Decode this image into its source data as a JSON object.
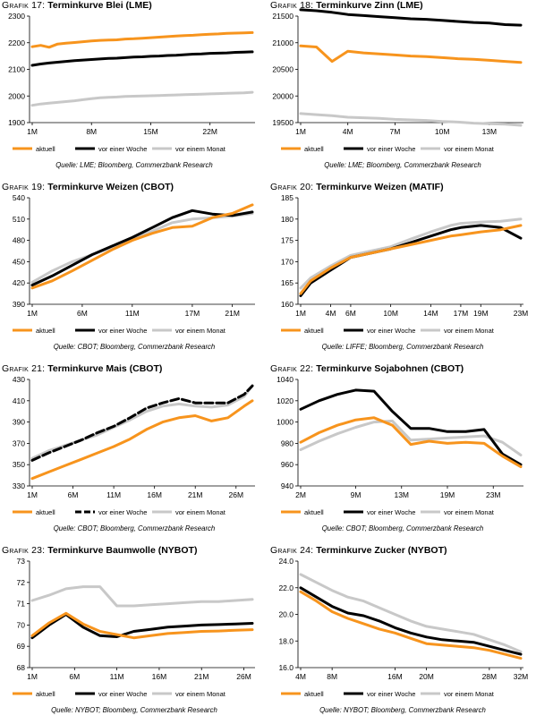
{
  "colors": {
    "aktuell": "#f7941d",
    "woche": "#000000",
    "monat": "#c8c8c8"
  },
  "chart_data": [
    {
      "type": "line",
      "grafik_label": "Grafik 17:",
      "title": "Terminkurve Blei (LME)",
      "source": "Quelle: LME; Bloomberg, Commerzbank Research",
      "ylim": [
        1900,
        2300
      ],
      "yticks": [
        "1900",
        "2000",
        "2100",
        "2200",
        "2300"
      ],
      "x": [
        1,
        2,
        3,
        4,
        5,
        6,
        7,
        8,
        9,
        10,
        11,
        12,
        13,
        14,
        15,
        16,
        17,
        18,
        19,
        20,
        21,
        22,
        23,
        24,
        25,
        26,
        27
      ],
      "xticks": [
        {
          "x": 1,
          "label": "1M"
        },
        {
          "x": 8,
          "label": "8M"
        },
        {
          "x": 15,
          "label": "15M"
        },
        {
          "x": 22,
          "label": "22M"
        }
      ],
      "series": [
        {
          "name": "aktuell",
          "style": "solid",
          "color_key": "aktuell",
          "values": [
            2185,
            2190,
            2183,
            2195,
            2198,
            2201,
            2204,
            2207,
            2209,
            2210,
            2211,
            2214,
            2215,
            2217,
            2219,
            2221,
            2223,
            2225,
            2227,
            2228,
            2230,
            2232,
            2233,
            2235,
            2236,
            2237,
            2238
          ]
        },
        {
          "name": "vor einer Woche",
          "style": "solid",
          "color_key": "woche",
          "values": [
            2115,
            2120,
            2124,
            2127,
            2130,
            2133,
            2135,
            2137,
            2139,
            2141,
            2142,
            2144,
            2146,
            2147,
            2149,
            2150,
            2152,
            2153,
            2155,
            2157,
            2158,
            2160,
            2161,
            2162,
            2164,
            2165,
            2166
          ]
        },
        {
          "name": "vor einem Monat",
          "style": "solid",
          "color_key": "monat",
          "values": [
            1965,
            1970,
            1973,
            1976,
            1979,
            1982,
            1986,
            1990,
            1993,
            1995,
            1996,
            1998,
            1999,
            2000,
            2001,
            2002,
            2003,
            2004,
            2005,
            2006,
            2007,
            2008,
            2009,
            2010,
            2011,
            2012,
            2014
          ]
        }
      ]
    },
    {
      "type": "line",
      "grafik_label": "Grafik 18:",
      "title": "Terminkurve Zinn (LME)",
      "source": "Quelle: LME; Bloomberg, Commerzbank Research",
      "ylim": [
        19500,
        21500
      ],
      "yticks": [
        "19500",
        "20000",
        "20500",
        "21000",
        "21500"
      ],
      "x": [
        1,
        2,
        3,
        4,
        5,
        6,
        7,
        8,
        9,
        10,
        11,
        12,
        13,
        14,
        15
      ],
      "xticks": [
        {
          "x": 1,
          "label": "1M"
        },
        {
          "x": 4,
          "label": "4M"
        },
        {
          "x": 7,
          "label": "7M"
        },
        {
          "x": 10,
          "label": "10M"
        },
        {
          "x": 13,
          "label": "13M"
        }
      ],
      "series": [
        {
          "name": "aktuell",
          "style": "solid",
          "color_key": "aktuell",
          "values": [
            20940,
            20920,
            20650,
            20840,
            20810,
            20790,
            20770,
            20750,
            20740,
            20720,
            20700,
            20690,
            20670,
            20650,
            20630
          ]
        },
        {
          "name": "vor einer Woche",
          "style": "solid",
          "color_key": "woche",
          "values": [
            21620,
            21600,
            21570,
            21530,
            21510,
            21490,
            21470,
            21450,
            21440,
            21420,
            21400,
            21380,
            21370,
            21340,
            21330
          ]
        },
        {
          "name": "vor einem Monat",
          "style": "solid",
          "color_key": "monat",
          "values": [
            19670,
            19650,
            19630,
            19600,
            19590,
            19580,
            19560,
            19550,
            19540,
            19520,
            19510,
            19490,
            19480,
            19470,
            19450
          ]
        }
      ]
    },
    {
      "type": "line",
      "grafik_label": "Grafik 19:",
      "title": "Terminkurve Weizen (CBOT)",
      "source": "Quelle: CBOT; Bloomberg, Commerzbank Research",
      "ylim": [
        390,
        540
      ],
      "yticks": [
        "390",
        "420",
        "450",
        "480",
        "510",
        "540"
      ],
      "x": [
        1,
        3,
        5,
        7,
        9,
        11,
        13,
        15,
        17,
        19,
        21,
        23
      ],
      "xticks": [
        {
          "x": 1,
          "label": "1M"
        },
        {
          "x": 6,
          "label": "6M"
        },
        {
          "x": 11,
          "label": "11M"
        },
        {
          "x": 17,
          "label": "17M"
        },
        {
          "x": 21,
          "label": "21M"
        }
      ],
      "series": [
        {
          "name": "aktuell",
          "style": "solid",
          "color_key": "aktuell",
          "values": [
            413,
            423,
            437,
            452,
            467,
            480,
            490,
            498,
            500,
            512,
            518,
            530
          ]
        },
        {
          "name": "vor einer Woche",
          "style": "solid",
          "color_key": "woche",
          "values": [
            417,
            430,
            445,
            460,
            472,
            484,
            498,
            512,
            522,
            517,
            515,
            520
          ]
        },
        {
          "name": "vor einem Monat",
          "style": "solid",
          "color_key": "monat",
          "values": [
            421,
            437,
            450,
            460,
            470,
            483,
            493,
            505,
            510,
            512,
            514,
            518
          ]
        }
      ]
    },
    {
      "type": "line",
      "grafik_label": "Grafik 20:",
      "title": "Terminkurve Weizen (MATIF)",
      "source": "Quelle: LIFFE; Bloomberg, Commerzbank Research",
      "ylim": [
        160,
        185
      ],
      "yticks": [
        "160",
        "165",
        "170",
        "175",
        "180",
        "185"
      ],
      "x": [
        1,
        2,
        4,
        6,
        8,
        10,
        12,
        14,
        16,
        17,
        19,
        21,
        23
      ],
      "xticks": [
        {
          "x": 1,
          "label": "1M"
        },
        {
          "x": 4,
          "label": "4M"
        },
        {
          "x": 6,
          "label": "6M"
        },
        {
          "x": 10,
          "label": "10M"
        },
        {
          "x": 14,
          "label": "14M"
        },
        {
          "x": 17,
          "label": "17M"
        },
        {
          "x": 19,
          "label": "19M"
        },
        {
          "x": 23,
          "label": "23M"
        }
      ],
      "series": [
        {
          "name": "aktuell",
          "style": "solid",
          "color_key": "aktuell",
          "values": [
            162.5,
            165.5,
            168.5,
            171,
            172,
            173,
            174,
            175,
            176,
            176.3,
            177,
            177.5,
            178.5
          ]
        },
        {
          "name": "vor einer Woche",
          "style": "solid",
          "color_key": "woche",
          "values": [
            162,
            165,
            168,
            171,
            172,
            173,
            174.5,
            176,
            177.5,
            178,
            178.5,
            178,
            175.5
          ]
        },
        {
          "name": "vor einem Monat",
          "style": "solid",
          "color_key": "monat",
          "values": [
            163.8,
            166.2,
            169,
            171.5,
            172.5,
            173.5,
            175.3,
            177,
            178.5,
            179,
            179.3,
            179.5,
            180
          ]
        }
      ]
    },
    {
      "type": "line",
      "grafik_label": "Grafik 21:",
      "title": "Terminkurve Mais (CBOT)",
      "source": "Quelle: CBOT; Bloomberg, Commerzbank Research",
      "ylim": [
        330,
        430
      ],
      "yticks": [
        "330",
        "350",
        "370",
        "390",
        "410",
        "430"
      ],
      "x": [
        1,
        3,
        5,
        7,
        9,
        11,
        13,
        15,
        17,
        19,
        21,
        23,
        25,
        27,
        28
      ],
      "xticks": [
        {
          "x": 1,
          "label": "1M"
        },
        {
          "x": 6,
          "label": "6M"
        },
        {
          "x": 11,
          "label": "11M"
        },
        {
          "x": 16,
          "label": "16M"
        },
        {
          "x": 21,
          "label": "21M"
        },
        {
          "x": 26,
          "label": "26M"
        }
      ],
      "series": [
        {
          "name": "aktuell",
          "style": "solid",
          "color_key": "aktuell",
          "values": [
            337,
            343,
            349,
            355,
            361,
            367,
            374,
            383,
            390,
            394,
            396,
            391,
            394,
            405,
            410
          ]
        },
        {
          "name": "vor einer Woche",
          "style": "dashed",
          "color_key": "woche",
          "values": [
            354,
            361,
            367,
            373,
            380,
            386,
            394,
            403,
            408,
            412,
            408,
            408,
            408,
            416,
            424
          ]
        },
        {
          "name": "vor einem Monat",
          "style": "solid",
          "color_key": "monat",
          "values": [
            356,
            363,
            368,
            373,
            378,
            385,
            392,
            400,
            405,
            407,
            405,
            404,
            406,
            414,
            424
          ]
        }
      ]
    },
    {
      "type": "line",
      "grafik_label": "Grafik 22:",
      "title": "Terminkurve Sojabohnen (CBOT)",
      "source": "Quelle: CBOT; Bloomberg, Commerzbank Research",
      "ylim": [
        940,
        1040
      ],
      "yticks": [
        "940",
        "960",
        "980",
        "1000",
        "1020",
        "1040"
      ],
      "x": [
        1,
        3,
        5,
        7,
        9,
        11,
        13,
        15,
        17,
        19,
        21,
        23,
        25
      ],
      "xticks": [
        {
          "x": 1,
          "label": "2M"
        },
        {
          "x": 7,
          "label": "9M"
        },
        {
          "x": 12,
          "label": "13M"
        },
        {
          "x": 17,
          "label": "19M"
        },
        {
          "x": 22,
          "label": "23M"
        }
      ],
      "series": [
        {
          "name": "aktuell",
          "style": "solid",
          "color_key": "aktuell",
          "values": [
            981,
            990,
            997,
            1002,
            1004,
            997,
            979,
            982,
            980,
            981,
            980,
            968,
            958
          ]
        },
        {
          "name": "vor einer Woche",
          "style": "solid",
          "color_key": "woche",
          "values": [
            1012,
            1020,
            1026,
            1030,
            1029,
            1010,
            994,
            994,
            991,
            991,
            993,
            970,
            960
          ]
        },
        {
          "name": "vor einem Monat",
          "style": "solid",
          "color_key": "monat",
          "values": [
            974,
            982,
            989,
            995,
            1000,
            1001,
            983,
            984,
            985,
            986,
            987,
            981,
            969
          ]
        }
      ]
    },
    {
      "type": "line",
      "grafik_label": "Grafik 23:",
      "title": "Terminkurve Baumwolle (NYBOT)",
      "source": "Quelle: NYBOT; Bloomberg, Commerzbank Research",
      "ylim": [
        68,
        73
      ],
      "yticks": [
        "68",
        "69",
        "70",
        "71",
        "72",
        "73"
      ],
      "x": [
        1,
        3,
        5,
        7,
        9,
        11,
        13,
        15,
        17,
        19,
        21,
        23,
        25,
        27
      ],
      "xticks": [
        {
          "x": 1,
          "label": "1M"
        },
        {
          "x": 6,
          "label": "6M"
        },
        {
          "x": 11,
          "label": "11M"
        },
        {
          "x": 16,
          "label": "16M"
        },
        {
          "x": 21,
          "label": "21M"
        },
        {
          "x": 26,
          "label": "26M"
        }
      ],
      "series": [
        {
          "name": "aktuell",
          "style": "solid",
          "color_key": "aktuell",
          "values": [
            69.5,
            70.1,
            70.55,
            70.05,
            69.7,
            69.55,
            69.4,
            69.5,
            69.6,
            69.65,
            69.7,
            69.72,
            69.75,
            69.78
          ]
        },
        {
          "name": "vor einer Woche",
          "style": "solid",
          "color_key": "woche",
          "values": [
            69.4,
            70,
            70.5,
            69.9,
            69.5,
            69.45,
            69.7,
            69.8,
            69.9,
            69.95,
            70,
            70.02,
            70.05,
            70.08
          ]
        },
        {
          "name": "vor einem Monat",
          "style": "solid",
          "color_key": "monat",
          "values": [
            71.15,
            71.4,
            71.7,
            71.8,
            71.8,
            70.9,
            70.9,
            70.95,
            71,
            71.05,
            71.1,
            71.1,
            71.15,
            71.2
          ]
        }
      ]
    },
    {
      "type": "line",
      "grafik_label": "Grafik 24:",
      "title": "Terminkurve Zucker (NYBOT)",
      "source": "Quelle: NYBOT; Bloomberg, Commerzbank Research",
      "ylim": [
        16.0,
        24.0
      ],
      "yticks": [
        "16.0",
        "18.0",
        "20.0",
        "22.0",
        "24.0"
      ],
      "x": [
        4,
        6,
        8,
        10,
        12,
        14,
        16,
        18,
        20,
        22,
        24,
        26,
        28,
        30,
        32
      ],
      "xticks": [
        {
          "x": 4,
          "label": "4M"
        },
        {
          "x": 8,
          "label": "8M"
        },
        {
          "x": 16,
          "label": "16M"
        },
        {
          "x": 20,
          "label": "20M"
        },
        {
          "x": 28,
          "label": "28M"
        },
        {
          "x": 32,
          "label": "32M"
        }
      ],
      "series": [
        {
          "name": "aktuell",
          "style": "solid",
          "color_key": "aktuell",
          "values": [
            21.7,
            21.0,
            20.2,
            19.7,
            19.3,
            18.9,
            18.6,
            18.2,
            17.8,
            17.7,
            17.6,
            17.5,
            17.3,
            17.0,
            16.7
          ]
        },
        {
          "name": "vor einer Woche",
          "style": "solid",
          "color_key": "woche",
          "values": [
            22.0,
            21.3,
            20.6,
            20.1,
            19.9,
            19.5,
            19.0,
            18.6,
            18.3,
            18.1,
            18.0,
            17.9,
            17.6,
            17.3,
            17.0
          ]
        },
        {
          "name": "vor einem Monat",
          "style": "solid",
          "color_key": "monat",
          "values": [
            23.0,
            22.4,
            21.8,
            21.3,
            21.0,
            20.5,
            20.0,
            19.5,
            19.1,
            18.9,
            18.7,
            18.5,
            18.1,
            17.7,
            17.2
          ]
        }
      ]
    }
  ]
}
